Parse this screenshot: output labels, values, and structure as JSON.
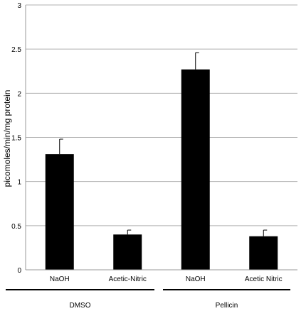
{
  "chart_data": {
    "type": "bar",
    "ylabel": "picomoles/min/mg protein",
    "ylim": [
      0,
      3
    ],
    "yticks": [
      "0",
      "0.5",
      "1",
      "1.5",
      "2",
      "2.5",
      "3"
    ],
    "grid": true,
    "categories": [
      "NaOH",
      "Acetic-Nitric",
      "NaOH",
      "Acetic Nitric"
    ],
    "values": [
      1.31,
      0.4,
      2.27,
      0.38
    ],
    "error": [
      0.17,
      0.05,
      0.19,
      0.07
    ],
    "groups": [
      {
        "label": "DMSO",
        "categories": [
          0,
          1
        ]
      },
      {
        "label": "Pellicin",
        "categories": [
          2,
          3
        ]
      }
    ],
    "bar_color": "#000000",
    "grid_color": "#b0b0b0"
  }
}
